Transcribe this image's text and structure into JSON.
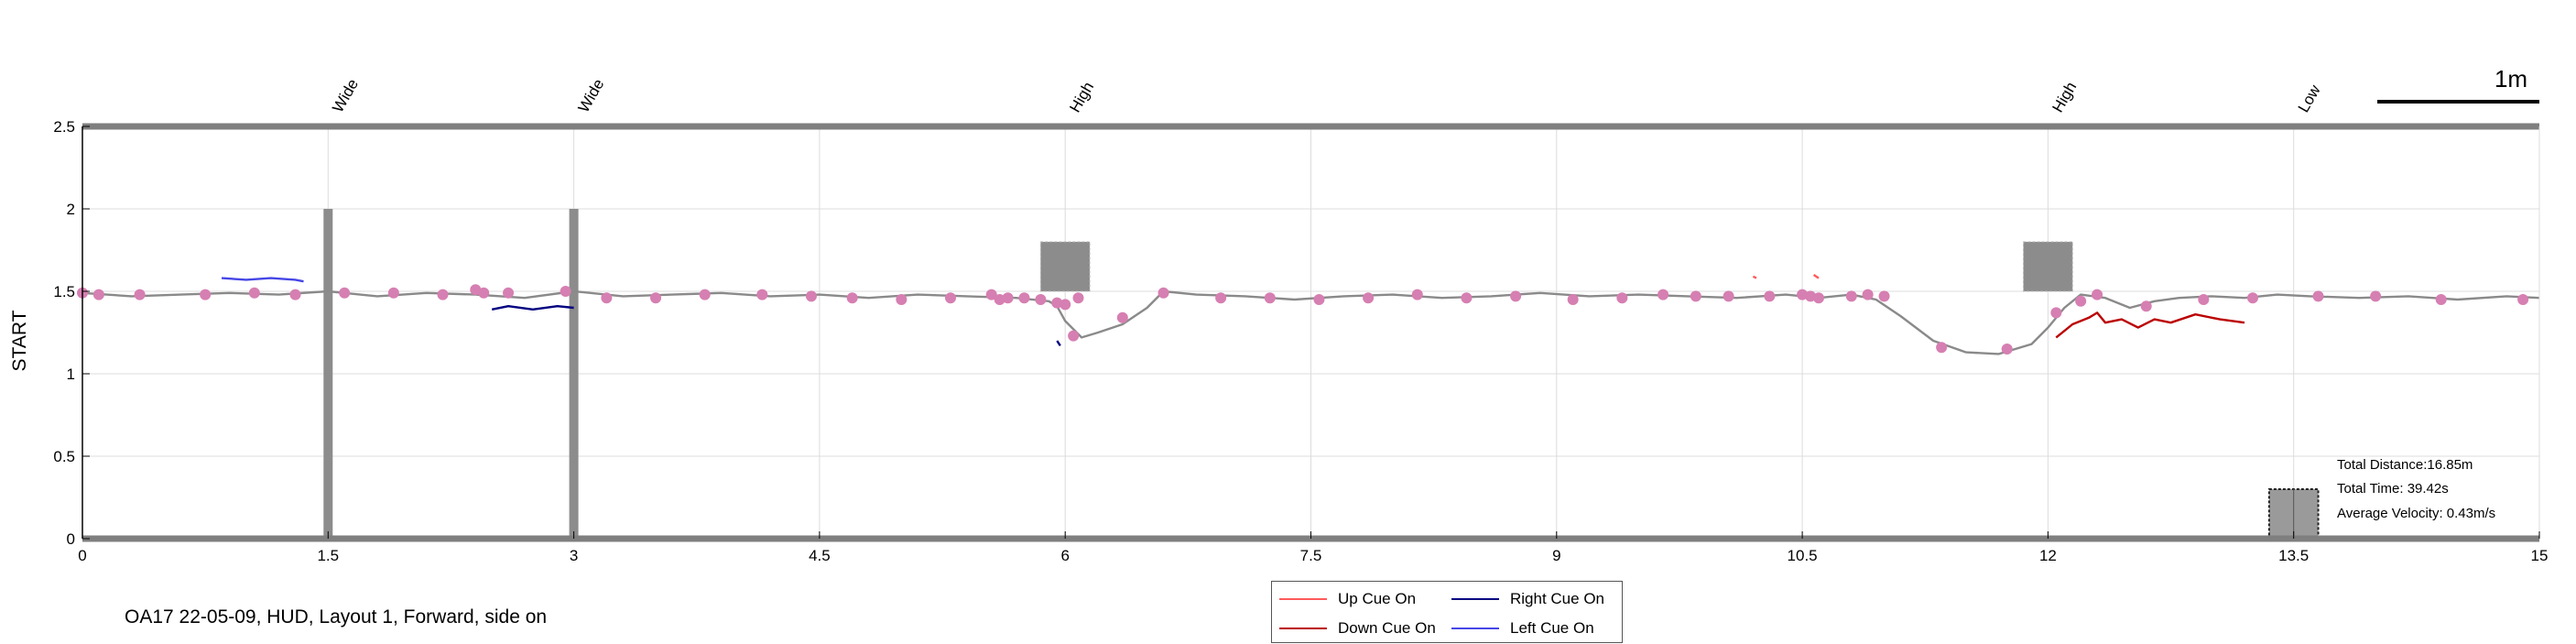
{
  "chart_data": {
    "type": "line",
    "xlim": [
      0,
      15
    ],
    "ylim": [
      0,
      2.5
    ],
    "x_ticks": [
      "0",
      "1.5",
      "3",
      "4.5",
      "6",
      "7.5",
      "9",
      "10.5",
      "12",
      "13.5",
      "15"
    ],
    "x_tick_values": [
      0,
      1.5,
      3,
      4.5,
      6,
      7.5,
      9,
      10.5,
      12,
      13.5,
      15
    ],
    "y_ticks": [
      "0",
      "0.5",
      "1",
      "1.5",
      "2",
      "2.5"
    ],
    "y_tick_values": [
      0,
      0.5,
      1,
      1.5,
      2,
      2.5
    ],
    "ylabel": "START",
    "grid": true,
    "colors": {
      "path": "#8a8a8a",
      "markers": "#d67fb2",
      "obstacles": "#8c8c8c",
      "up_cue": "#ff5a5a",
      "down_cue": "#bb0000",
      "right_cue": "#000080",
      "left_cue": "#4646e6"
    },
    "obstacles": [
      {
        "label": "Wide",
        "x": 1.5,
        "type": "wall",
        "y_range": [
          0,
          2.0
        ]
      },
      {
        "label": "Wide",
        "x": 3.0,
        "type": "wall",
        "y_range": [
          0,
          2.0
        ]
      },
      {
        "label": "High",
        "x": 6.0,
        "type": "box",
        "x_range": [
          5.85,
          6.15
        ],
        "y_range": [
          1.5,
          1.8
        ]
      },
      {
        "label": "High",
        "x": 12.0,
        "type": "box",
        "x_range": [
          11.85,
          12.15
        ],
        "y_range": [
          1.5,
          1.8
        ]
      },
      {
        "label": "Low",
        "x": 13.5,
        "type": "box",
        "x_range": [
          13.35,
          13.65
        ],
        "y_range": [
          0,
          0.3
        ]
      }
    ],
    "walking_path": {
      "name": "",
      "x": [
        0,
        0.3,
        0.6,
        0.9,
        1.2,
        1.5,
        1.8,
        2.1,
        2.4,
        2.7,
        3.0,
        3.3,
        3.6,
        3.9,
        4.2,
        4.5,
        4.8,
        5.1,
        5.4,
        5.7,
        5.9,
        5.95,
        6.0,
        6.1,
        6.2,
        6.35,
        6.5,
        6.6,
        6.8,
        7.1,
        7.4,
        7.7,
        8.0,
        8.3,
        8.6,
        8.9,
        9.2,
        9.5,
        9.8,
        10.1,
        10.4,
        10.6,
        10.8,
        10.95,
        11.1,
        11.3,
        11.5,
        11.7,
        11.9,
        12.0,
        12.1,
        12.2,
        12.35,
        12.5,
        12.65,
        12.8,
        13.0,
        13.2,
        13.4,
        13.6,
        13.9,
        14.2,
        14.5,
        14.8,
        15.0
      ],
      "y": [
        1.49,
        1.47,
        1.48,
        1.49,
        1.48,
        1.5,
        1.47,
        1.49,
        1.48,
        1.46,
        1.5,
        1.47,
        1.48,
        1.49,
        1.47,
        1.48,
        1.46,
        1.48,
        1.47,
        1.46,
        1.44,
        1.41,
        1.32,
        1.22,
        1.25,
        1.3,
        1.4,
        1.5,
        1.48,
        1.47,
        1.45,
        1.47,
        1.48,
        1.46,
        1.47,
        1.49,
        1.47,
        1.48,
        1.47,
        1.46,
        1.48,
        1.46,
        1.48,
        1.45,
        1.35,
        1.2,
        1.13,
        1.12,
        1.18,
        1.28,
        1.4,
        1.48,
        1.46,
        1.4,
        1.44,
        1.46,
        1.47,
        1.46,
        1.48,
        1.47,
        1.46,
        1.47,
        1.45,
        1.47,
        1.46
      ]
    },
    "markers": {
      "x": [
        0.0,
        0.1,
        0.35,
        0.75,
        1.05,
        1.3,
        1.6,
        1.9,
        2.2,
        2.4,
        2.45,
        2.6,
        2.95,
        3.2,
        3.5,
        3.8,
        4.15,
        4.45,
        4.7,
        5.0,
        5.3,
        5.55,
        5.6,
        5.65,
        5.75,
        5.85,
        5.95,
        6.0,
        6.08,
        6.05,
        6.35,
        6.6,
        6.95,
        7.25,
        7.55,
        7.85,
        8.15,
        8.45,
        8.75,
        9.1,
        9.4,
        9.65,
        9.85,
        10.05,
        10.3,
        10.5,
        10.55,
        10.6,
        10.8,
        10.9,
        11.0,
        11.35,
        11.75,
        12.05,
        12.2,
        12.3,
        12.6,
        12.95,
        13.25,
        13.65,
        14.0,
        14.4,
        14.9
      ],
      "y": [
        1.49,
        1.48,
        1.48,
        1.48,
        1.49,
        1.48,
        1.49,
        1.49,
        1.48,
        1.51,
        1.49,
        1.49,
        1.5,
        1.46,
        1.46,
        1.48,
        1.48,
        1.47,
        1.46,
        1.45,
        1.46,
        1.48,
        1.45,
        1.46,
        1.46,
        1.45,
        1.43,
        1.42,
        1.46,
        1.23,
        1.34,
        1.49,
        1.46,
        1.46,
        1.45,
        1.46,
        1.48,
        1.46,
        1.47,
        1.45,
        1.46,
        1.48,
        1.47,
        1.47,
        1.47,
        1.48,
        1.47,
        1.46,
        1.47,
        1.48,
        1.47,
        1.16,
        1.15,
        1.37,
        1.44,
        1.48,
        1.41,
        1.45,
        1.46,
        1.47,
        1.47,
        1.45,
        1.45
      ]
    },
    "cue_series": [
      {
        "cue": "Left Cue On",
        "x": [
          0.85,
          1.0,
          1.15,
          1.3,
          1.35
        ],
        "y": [
          1.58,
          1.57,
          1.58,
          1.57,
          1.56
        ]
      },
      {
        "cue": "Right Cue On",
        "x": [
          2.5,
          2.6,
          2.75,
          2.9,
          3.0
        ],
        "y": [
          1.39,
          1.41,
          1.39,
          1.41,
          1.4
        ]
      },
      {
        "cue": "Right Cue On",
        "x": [
          5.95,
          5.97
        ],
        "y": [
          1.2,
          1.17
        ]
      },
      {
        "cue": "Up Cue On",
        "x": [
          10.2,
          10.22
        ],
        "y": [
          1.59,
          1.58
        ]
      },
      {
        "cue": "Up Cue On",
        "x": [
          10.57,
          10.6
        ],
        "y": [
          1.6,
          1.58
        ]
      },
      {
        "cue": "Down Cue On",
        "x": [
          12.05,
          12.15,
          12.25,
          12.3,
          12.35,
          12.45,
          12.55,
          12.65,
          12.75,
          12.9,
          13.05,
          13.2
        ],
        "y": [
          1.22,
          1.3,
          1.34,
          1.37,
          1.31,
          1.33,
          1.28,
          1.33,
          1.31,
          1.36,
          1.33,
          1.31
        ]
      }
    ],
    "legend": {
      "items": [
        {
          "label": "Up Cue On",
          "color": "#ff5a5a"
        },
        {
          "label": "Right Cue On",
          "color": "#000080"
        },
        {
          "label": "Down Cue On",
          "color": "#bb0000"
        },
        {
          "label": "Left Cue On",
          "color": "#4646e6"
        }
      ]
    },
    "stats": {
      "total_distance": "Total Distance:16.85m",
      "total_time": "Total Time: 39.42s",
      "average_velocity": "Average Velocity: 0.43m/s"
    },
    "scale_bar_label": "1m"
  },
  "caption": "OA17 22-05-09, HUD, Layout 1, Forward, side on"
}
